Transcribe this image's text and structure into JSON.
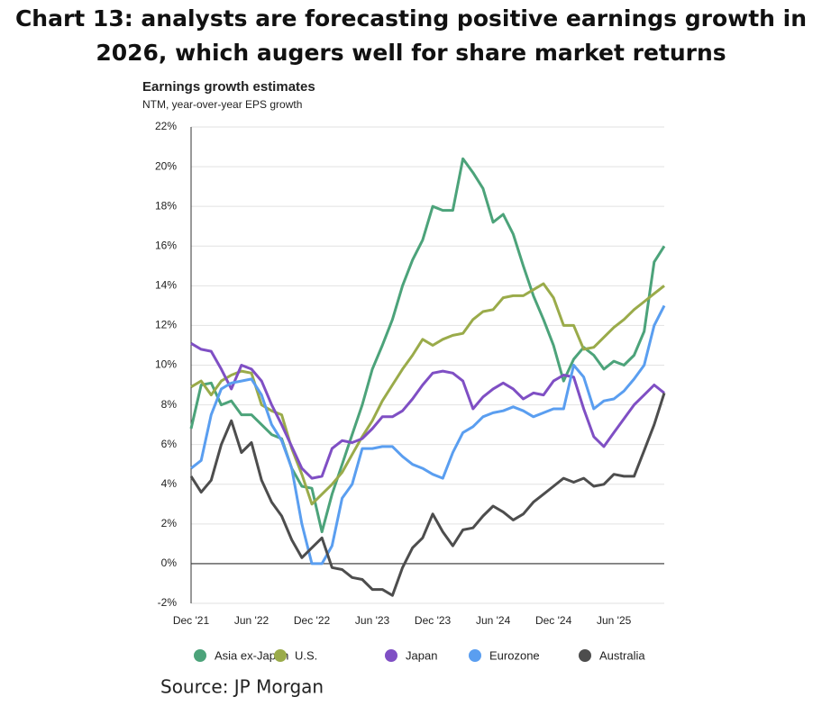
{
  "heading": "Chart 13: analysts are forecasting positive earnings growth in 2026, which augers well for share market returns",
  "source": "Source: JP Morgan",
  "chart_data": {
    "type": "line",
    "title": "Earnings growth estimates",
    "subtitle": "NTM, year-over-year EPS growth",
    "categories": [
      "Dec '21",
      null,
      null,
      null,
      null,
      null,
      "Jun '22",
      null,
      null,
      null,
      null,
      null,
      "Dec '22",
      null,
      null,
      null,
      null,
      null,
      "Jun '23",
      null,
      null,
      null,
      null,
      null,
      "Dec '23",
      null,
      null,
      null,
      null,
      null,
      "Jun '24",
      null,
      null,
      null,
      null,
      null,
      "Dec '24",
      null,
      null,
      null,
      null,
      null,
      "Jun '25",
      null,
      null,
      null,
      null,
      null
    ],
    "ylim": [
      -2,
      22
    ],
    "yticks": [
      {
        "value": -2,
        "label": "-2%"
      },
      {
        "value": 0,
        "label": "0%"
      },
      {
        "value": 2,
        "label": "2%"
      },
      {
        "value": 4,
        "label": "4%"
      },
      {
        "value": 6,
        "label": "6%"
      },
      {
        "value": 8,
        "label": "8%"
      },
      {
        "value": 10,
        "label": "10%"
      },
      {
        "value": 12,
        "label": "12%"
      },
      {
        "value": 14,
        "label": "14%"
      },
      {
        "value": 16,
        "label": "16%"
      },
      {
        "value": 18,
        "label": "18%"
      },
      {
        "value": 20,
        "label": "20%"
      },
      {
        "value": 22,
        "label": "22%"
      }
    ],
    "grid": true,
    "legend": "bottom",
    "series": [
      {
        "name": "Asia ex-Japan",
        "color": "#4ca37a",
        "values": [
          6.8,
          9.0,
          9.1,
          8.0,
          8.2,
          7.5,
          7.5,
          7.0,
          6.5,
          6.3,
          4.8,
          3.9,
          3.8,
          1.6,
          3.5,
          5.0,
          6.5,
          8.0,
          9.8,
          11.0,
          12.3,
          14.0,
          15.3,
          16.3,
          18.0,
          17.8,
          17.8,
          20.4,
          19.7,
          18.9,
          17.2,
          17.6,
          16.6,
          15.0,
          13.5,
          12.3,
          11.0,
          9.2,
          10.3,
          10.9,
          10.5,
          9.8,
          10.2,
          10.0,
          10.5,
          11.7,
          15.2,
          16.0
        ]
      },
      {
        "name": "U.S.",
        "color": "#9aab4a",
        "values": [
          8.9,
          9.2,
          8.5,
          9.2,
          9.5,
          9.7,
          9.6,
          8.0,
          7.7,
          7.5,
          5.8,
          4.5,
          3.0,
          3.5,
          4.0,
          4.6,
          5.5,
          6.4,
          7.2,
          8.2,
          9.0,
          9.8,
          10.5,
          11.3,
          11.0,
          11.3,
          11.5,
          11.6,
          12.3,
          12.7,
          12.8,
          13.4,
          13.5,
          13.5,
          13.8,
          14.1,
          13.4,
          12.0,
          12.0,
          10.8,
          10.9,
          11.4,
          11.9,
          12.3,
          12.8,
          13.2,
          13.6,
          14.0
        ]
      },
      {
        "name": "Japan",
        "color": "#7f4fc4",
        "values": [
          11.1,
          10.8,
          10.7,
          9.8,
          8.8,
          10.0,
          9.8,
          9.2,
          8.0,
          7.0,
          5.9,
          4.8,
          4.3,
          4.4,
          5.8,
          6.2,
          6.1,
          6.3,
          6.8,
          7.4,
          7.4,
          7.7,
          8.3,
          9.0,
          9.6,
          9.7,
          9.6,
          9.2,
          7.8,
          8.4,
          8.8,
          9.1,
          8.8,
          8.3,
          8.6,
          8.5,
          9.2,
          9.5,
          9.4,
          7.8,
          6.4,
          5.9,
          6.6,
          7.3,
          8.0,
          8.5,
          9.0,
          8.6
        ]
      },
      {
        "name": "Eurozone",
        "color": "#5a9ef0",
        "values": [
          4.8,
          5.2,
          7.5,
          8.8,
          9.1,
          9.2,
          9.3,
          8.5,
          7.0,
          6.2,
          4.8,
          2.0,
          0.0,
          0.0,
          0.9,
          3.3,
          4.0,
          5.8,
          5.8,
          5.9,
          5.9,
          5.4,
          5.0,
          4.8,
          4.5,
          4.3,
          5.6,
          6.6,
          6.9,
          7.4,
          7.6,
          7.7,
          7.9,
          7.7,
          7.4,
          7.6,
          7.8,
          7.8,
          10.0,
          9.4,
          7.8,
          8.2,
          8.3,
          8.7,
          9.3,
          10.0,
          12.0,
          13.0
        ]
      },
      {
        "name": "Australia",
        "color": "#4d4d4d",
        "values": [
          4.4,
          3.6,
          4.2,
          6.0,
          7.2,
          5.6,
          6.1,
          4.2,
          3.1,
          2.4,
          1.2,
          0.3,
          0.8,
          1.3,
          -0.2,
          -0.3,
          -0.7,
          -0.8,
          -1.3,
          -1.3,
          -1.6,
          -0.2,
          0.8,
          1.3,
          2.5,
          1.6,
          0.9,
          1.7,
          1.8,
          2.4,
          2.9,
          2.6,
          2.2,
          2.5,
          3.1,
          3.5,
          3.9,
          4.3,
          4.1,
          4.3,
          3.9,
          4.0,
          4.5,
          4.4,
          4.4,
          5.7,
          7.0,
          8.6
        ]
      }
    ]
  }
}
